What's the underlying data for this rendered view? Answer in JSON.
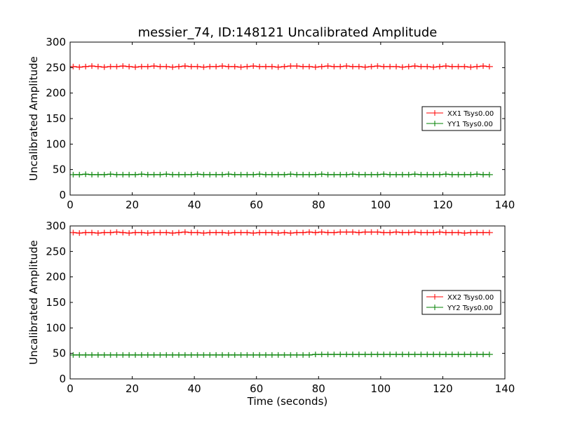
{
  "chart_data": [
    {
      "type": "line",
      "title": "messier_74, ID:148121 Uncalibrated Amplitude",
      "xlabel": "",
      "ylabel": "Uncalibrated Amplitude",
      "xlim": [
        0,
        140
      ],
      "ylim": [
        0,
        300
      ],
      "xticks": [
        0,
        20,
        40,
        60,
        80,
        100,
        120,
        140
      ],
      "yticks": [
        0,
        50,
        100,
        150,
        200,
        250,
        300
      ],
      "legend_position": "center-right",
      "x_start": 1,
      "x_step": 2,
      "series": [
        {
          "name": "XX1 Tsys0.00",
          "color": "#ff0000",
          "marker": "+",
          "values": [
            252,
            251,
            252,
            253,
            252,
            251,
            252,
            252,
            253,
            252,
            251,
            252,
            252,
            253,
            252,
            252,
            251,
            252,
            253,
            252,
            252,
            251,
            252,
            252,
            253,
            252,
            252,
            251,
            252,
            253,
            252,
            252,
            252,
            251,
            252,
            253,
            253,
            252,
            252,
            251,
            252,
            253,
            252,
            252,
            253,
            252,
            252,
            251,
            252,
            253,
            252,
            252,
            252,
            251,
            252,
            253,
            252,
            252,
            251,
            252,
            253,
            252,
            252,
            252,
            251,
            252,
            253,
            252
          ]
        },
        {
          "name": "YY1 Tsys0.00",
          "color": "#008000",
          "marker": "+",
          "values": [
            40,
            40,
            41,
            40,
            40,
            40,
            41,
            40,
            40,
            40,
            40,
            41,
            40,
            40,
            40,
            41,
            40,
            40,
            40,
            40,
            41,
            40,
            40,
            40,
            40,
            41,
            40,
            40,
            40,
            40,
            41,
            40,
            40,
            40,
            40,
            41,
            40,
            40,
            40,
            40,
            41,
            40,
            40,
            40,
            40,
            41,
            40,
            40,
            40,
            40,
            41,
            40,
            40,
            40,
            40,
            41,
            40,
            40,
            40,
            40,
            41,
            40,
            40,
            40,
            40,
            41,
            40,
            40
          ]
        }
      ]
    },
    {
      "type": "line",
      "title": "",
      "xlabel": "Time (seconds)",
      "ylabel": "Uncalibrated Amplitude",
      "xlim": [
        0,
        140
      ],
      "ylim": [
        0,
        300
      ],
      "xticks": [
        0,
        20,
        40,
        60,
        80,
        100,
        120,
        140
      ],
      "yticks": [
        0,
        50,
        100,
        150,
        200,
        250,
        300
      ],
      "legend_position": "center-right",
      "x_start": 1,
      "x_step": 2,
      "series": [
        {
          "name": "XX2 Tsys0.00",
          "color": "#ff0000",
          "marker": "+",
          "values": [
            287,
            286,
            287,
            287,
            286,
            287,
            287,
            288,
            287,
            286,
            287,
            287,
            286,
            287,
            287,
            287,
            286,
            287,
            288,
            287,
            287,
            286,
            287,
            287,
            287,
            286,
            287,
            287,
            287,
            286,
            287,
            287,
            287,
            286,
            287,
            286,
            287,
            287,
            288,
            287,
            288,
            287,
            287,
            288,
            288,
            288,
            287,
            288,
            288,
            288,
            287,
            287,
            288,
            287,
            287,
            288,
            287,
            287,
            287,
            288,
            287,
            287,
            287,
            286,
            287,
            287,
            287,
            287
          ]
        },
        {
          "name": "YY2 Tsys0.00",
          "color": "#008000",
          "marker": "+",
          "values": [
            47,
            47,
            47,
            47,
            47,
            47,
            47,
            47,
            47,
            47,
            47,
            47,
            47,
            47,
            47,
            47,
            47,
            47,
            47,
            47,
            47,
            47,
            47,
            47,
            47,
            47,
            47,
            47,
            47,
            47,
            47,
            47,
            47,
            47,
            47,
            47,
            47,
            47,
            47,
            48,
            48,
            48,
            48,
            48,
            48,
            48,
            48,
            48,
            48,
            48,
            48,
            48,
            48,
            48,
            48,
            48,
            48,
            48,
            48,
            48,
            48,
            48,
            48,
            48,
            48,
            48,
            48,
            48
          ]
        }
      ]
    }
  ]
}
